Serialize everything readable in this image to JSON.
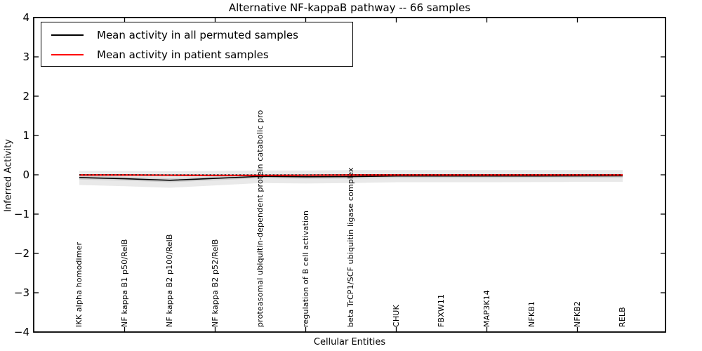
{
  "figure": {
    "title": "Alternative NF-kappaB pathway -- 66 samples",
    "xlabel": "Cellular Entities",
    "ylabel": "Inferred Activity"
  },
  "legend": {
    "position": "upper left",
    "items": [
      {
        "label": "Mean activity in all permuted samples",
        "color": "#000000"
      },
      {
        "label": "Mean activity in patient samples",
        "color": "#ff0000"
      }
    ]
  },
  "chart_data": {
    "type": "line",
    "title": "Alternative NF-kappaB pathway -- 66 samples",
    "xlabel": "Cellular Entities",
    "ylabel": "Inferred Activity",
    "ylim": [
      -4,
      4
    ],
    "xlim": [
      -1,
      13
    ],
    "grid": false,
    "legend_position": "upper left",
    "yticks": [
      4,
      3,
      2,
      1,
      0,
      -1,
      -2,
      -3,
      -4
    ],
    "ytick_labels": [
      "4",
      "3",
      "2",
      "1",
      "0",
      "−1",
      "−2",
      "−3",
      "−4"
    ],
    "categories": [
      "IKK alpha homodimer",
      "NF kappa B1 p50/RelB",
      "NF kappa B2 p100/RelB",
      "NF kappa B2 p52/RelB",
      "proteasomal ubiquitin-dependent protein catabolic pro",
      "regulation of B cell activation",
      "beta TrCP1/SCF ubiquitin ligase complex",
      "CHUK",
      "FBXW11",
      "MAP3K14",
      "NFKB1",
      "NFKB2",
      "RELB"
    ],
    "series": [
      {
        "name": "Mean activity in all permuted samples",
        "color": "#000000",
        "style": "solid",
        "width": 1.6,
        "values": [
          -0.07,
          -0.1,
          -0.14,
          -0.09,
          -0.04,
          -0.05,
          -0.045,
          -0.03,
          -0.03,
          -0.03,
          -0.03,
          -0.028,
          -0.025
        ]
      },
      {
        "name": "Mean activity in patient samples",
        "color": "#ff0000",
        "style": "solid",
        "width": 2.2,
        "values": [
          -0.005,
          -0.005,
          -0.01,
          -0.015,
          -0.015,
          -0.01,
          -0.005,
          -0.005,
          -0.005,
          -0.005,
          -0.005,
          -0.005,
          -0.005
        ]
      }
    ],
    "zero_reference_line": {
      "y": 0,
      "color": "#000000",
      "style": "dotted"
    },
    "band_outer": {
      "color": "#000000",
      "opacity": 0.085,
      "upper": [
        0.1,
        0.1,
        0.09,
        0.1,
        0.11,
        0.11,
        0.12,
        0.12,
        0.12,
        0.12,
        0.12,
        0.12,
        0.12
      ],
      "lower": [
        -0.26,
        -0.29,
        -0.33,
        -0.27,
        -0.21,
        -0.22,
        -0.21,
        -0.19,
        -0.19,
        -0.19,
        -0.185,
        -0.18,
        -0.18
      ]
    },
    "band_inner": {
      "color": "#000000",
      "opacity": 0.1,
      "upper": [
        -0.02,
        -0.05,
        -0.09,
        -0.04,
        0.005,
        0.0,
        0.005,
        0.02,
        0.02,
        0.02,
        0.02,
        0.022,
        0.025
      ],
      "lower": [
        -0.12,
        -0.15,
        -0.19,
        -0.14,
        -0.085,
        -0.1,
        -0.095,
        -0.08,
        -0.08,
        -0.08,
        -0.078,
        -0.075,
        -0.075
      ]
    }
  }
}
